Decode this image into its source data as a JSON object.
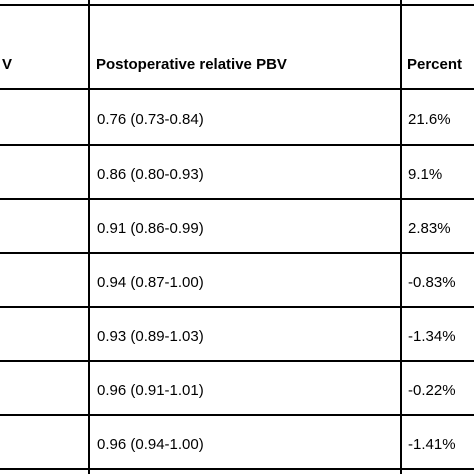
{
  "table": {
    "header": {
      "col1_fragment": "V",
      "col2": "Postoperative relative PBV",
      "col3_fragment": "Percent"
    },
    "rows": [
      {
        "postop": "0.76 (0.73-0.84)",
        "percent": "21.6%"
      },
      {
        "postop": "0.86 (0.80-0.93)",
        "percent": "9.1%"
      },
      {
        "postop": "0.91 (0.86-0.99)",
        "percent": "2.83%"
      },
      {
        "postop": "0.94 (0.87-1.00)",
        "percent": "-0.83%"
      },
      {
        "postop": "0.93 (0.89-1.03)",
        "percent": "-1.34%"
      },
      {
        "postop": "0.96 (0.91-1.01)",
        "percent": "-0.22%"
      },
      {
        "postop": "0.96 (0.94-1.00)",
        "percent": "-1.41%"
      }
    ]
  }
}
